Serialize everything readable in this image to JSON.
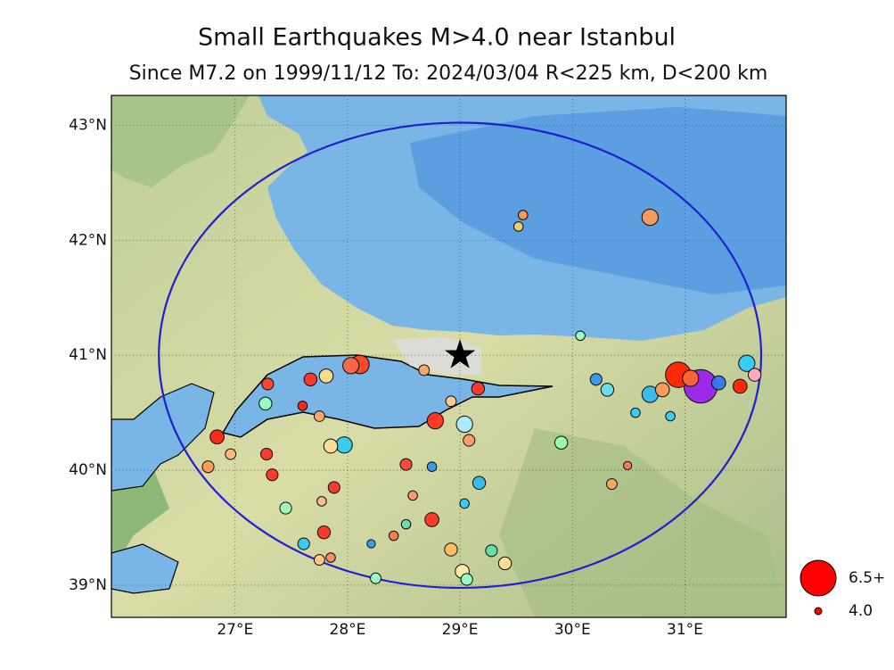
{
  "chart_data": {
    "type": "scatter",
    "title": "Small Earthquakes M>4.0 near Istanbul",
    "subtitle": "Since M7.2 on 1999/11/12  To: 2024/03/04 R<225 km, D<200 km",
    "xlim": [
      25.9,
      31.9
    ],
    "ylim": [
      38.72,
      43.26
    ],
    "xticks": [
      {
        "value": 27,
        "label": "27°E"
      },
      {
        "value": 28,
        "label": "28°E"
      },
      {
        "value": 29,
        "label": "29°E"
      },
      {
        "value": 30,
        "label": "30°E"
      },
      {
        "value": 31,
        "label": "31°E"
      }
    ],
    "yticks": [
      {
        "value": 39,
        "label": "39°N"
      },
      {
        "value": 40,
        "label": "40°N"
      },
      {
        "value": 41,
        "label": "41°N"
      },
      {
        "value": 42,
        "label": "42°N"
      },
      {
        "value": 43,
        "label": "43°N"
      }
    ],
    "grid": true,
    "center": {
      "x": 29,
      "y": 41
    },
    "radius_km": 225,
    "x": [
      29.56,
      29.52,
      30.69,
      30.07,
      31.14,
      30.94,
      31.05,
      31.55,
      31.62,
      31.49,
      30.69,
      30.21,
      30.31,
      30.56,
      30.87,
      29.9,
      30.35,
      30.49,
      28.11,
      28.03,
      27.81,
      27.67,
      28.68,
      28.78,
      29.04,
      29.08,
      29.16,
      28.92,
      27.97,
      27.85,
      27.75,
      27.27,
      27.29,
      26.84,
      26.76,
      26.96,
      27.28,
      27.33,
      27.88,
      27.77,
      27.45,
      28.52,
      28.75,
      28.58,
      28.75,
      29.17,
      29.04,
      28.52,
      28.41,
      27.79,
      27.61,
      27.85,
      27.75,
      28.92,
      29.28,
      29.4,
      29.02,
      29.06,
      28.25,
      28.21,
      27.6,
      31.3,
      30.8
    ],
    "y": [
      42.22,
      42.12,
      42.2,
      41.17,
      40.73,
      40.83,
      40.8,
      40.93,
      40.83,
      40.73,
      40.66,
      40.79,
      40.7,
      40.5,
      40.47,
      40.24,
      39.88,
      40.04,
      40.92,
      40.91,
      40.82,
      40.79,
      40.87,
      40.43,
      40.4,
      40.26,
      40.71,
      40.6,
      40.22,
      40.21,
      40.47,
      40.58,
      40.75,
      40.29,
      40.03,
      40.14,
      40.14,
      39.96,
      39.85,
      39.73,
      39.67,
      40.05,
      40.03,
      39.78,
      39.57,
      39.89,
      39.71,
      39.53,
      39.43,
      39.46,
      39.36,
      39.24,
      39.22,
      39.31,
      39.3,
      39.19,
      39.12,
      39.05,
      39.06,
      39.36,
      40.56,
      40.76,
      40.7
    ],
    "sizes": [
      4.2,
      4.2,
      4.8,
      4.2,
      6.3,
      5.6,
      4.8,
      4.8,
      4.5,
      4.6,
      4.8,
      4.4,
      4.5,
      4.2,
      4.2,
      4.5,
      4.3,
      4.1,
      5.0,
      4.8,
      4.6,
      4.5,
      4.3,
      4.8,
      4.8,
      4.4,
      4.5,
      4.3,
      4.8,
      4.6,
      4.3,
      4.5,
      4.4,
      4.6,
      4.4,
      4.3,
      4.4,
      4.4,
      4.4,
      4.2,
      4.4,
      4.4,
      4.2,
      4.2,
      4.6,
      4.5,
      4.2,
      4.2,
      4.2,
      4.5,
      4.4,
      4.2,
      4.3,
      4.5,
      4.4,
      4.5,
      4.6,
      4.4,
      4.3,
      4.1,
      4.2,
      4.6,
      4.6
    ],
    "colors": [
      "#ff9955",
      "#ffcc66",
      "#ff9955",
      "#99ffcc",
      "#9922ee",
      "#ff2200",
      "#ff6633",
      "#33ccff",
      "#ffaabb",
      "#ff2200",
      "#33bbee",
      "#3399ee",
      "#66ddee",
      "#33ccff",
      "#33ccff",
      "#99ffaa",
      "#ffaa55",
      "#ff7755",
      "#ff4422",
      "#ff6644",
      "#ffdd88",
      "#ff3322",
      "#ffaa66",
      "#ff3322",
      "#aaeeff",
      "#ff9966",
      "#ff3322",
      "#ffcc88",
      "#33ccee",
      "#ffdd99",
      "#ffaa66",
      "#99ffbb",
      "#ff4422",
      "#ff2211",
      "#ff9955",
      "#ffbb77",
      "#ff3322",
      "#ff3322",
      "#ff3322",
      "#ffbb88",
      "#99ffbb",
      "#ff4433",
      "#3399ee",
      "#ff9966",
      "#ff3322",
      "#33bbee",
      "#33ccff",
      "#66ddaa",
      "#ff7744",
      "#ff3322",
      "#33ccee",
      "#ff8866",
      "#ffcc88",
      "#ffbb66",
      "#66ddaa",
      "#ffdd99",
      "#ffeeaa",
      "#99ffcc",
      "#99ffcc",
      "#3399ee",
      "#ff2211",
      "#3377ee",
      "#ff9955"
    ],
    "legend": [
      {
        "value": 6.5,
        "label": "6.5+"
      },
      {
        "value": 4,
        "label": "4.0"
      }
    ]
  }
}
